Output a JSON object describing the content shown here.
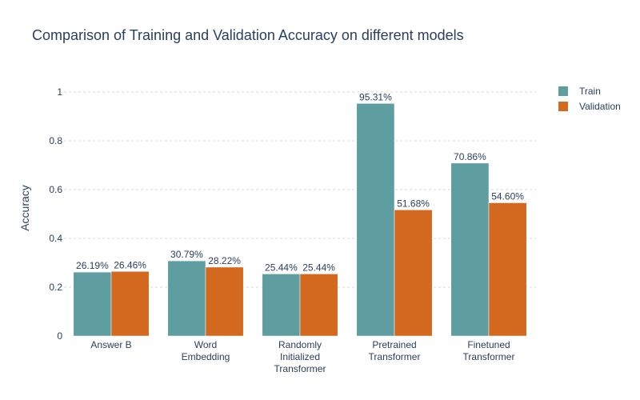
{
  "chart_data": {
    "type": "bar",
    "title": "Comparison of Training and Validation Accuracy on different models",
    "ylabel": "Accuracy",
    "xlabel": "",
    "ylim": [
      0,
      1
    ],
    "yticks": [
      "0",
      "0.2",
      "0.4",
      "0.6",
      "0.8",
      "1"
    ],
    "categories": [
      [
        "Answer B"
      ],
      [
        "Word",
        "Embedding"
      ],
      [
        "Randomly",
        "Initialized",
        "Transformer"
      ],
      [
        "Pretrained",
        "Transformer"
      ],
      [
        "Finetuned",
        "Transformer"
      ]
    ],
    "series": [
      {
        "name": "Train",
        "color": "#5f9ea0",
        "values": [
          0.2619,
          0.3079,
          0.2544,
          0.9531,
          0.7086
        ],
        "labels": [
          "26.19%",
          "30.79%",
          "25.44%",
          "95.31%",
          "70.86%"
        ]
      },
      {
        "name": "Validation",
        "color": "#d2691e",
        "values": [
          0.2646,
          0.2822,
          0.2544,
          0.5168,
          0.546
        ],
        "labels": [
          "26.46%",
          "28.22%",
          "25.44%",
          "51.68%",
          "54.60%"
        ]
      }
    ],
    "grid": true,
    "legend_position": "top-right"
  }
}
